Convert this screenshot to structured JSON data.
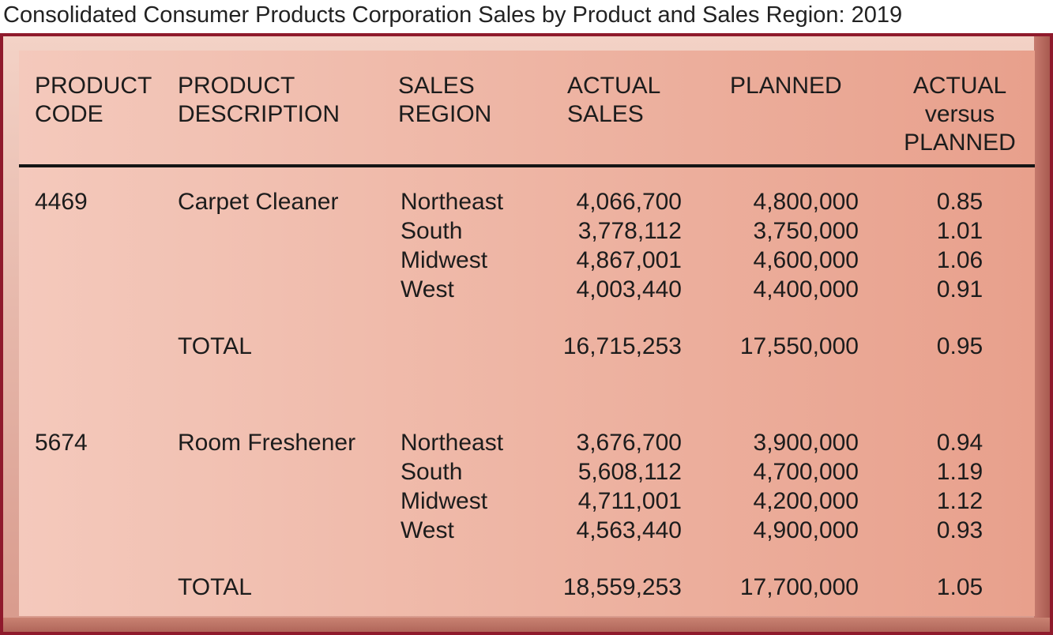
{
  "title": "Consolidated Consumer Products Corporation Sales by Product and Sales Region: 2019",
  "headers": {
    "code": [
      "PRODUCT",
      "CODE"
    ],
    "description": [
      "PRODUCT",
      "DESCRIPTION"
    ],
    "region": [
      "SALES",
      "REGION"
    ],
    "actual": [
      "ACTUAL",
      "SALES"
    ],
    "planned": [
      "PLANNED"
    ],
    "ratio": [
      "ACTUAL",
      "versus",
      "PLANNED"
    ]
  },
  "products": [
    {
      "code": "4469",
      "description": "Carpet Cleaner",
      "rows": [
        {
          "region": "Northeast",
          "actual": "4,066,700",
          "planned": "4,800,000",
          "ratio": "0.85"
        },
        {
          "region": "South",
          "actual": "3,778,112",
          "planned": "3,750,000",
          "ratio": "1.01"
        },
        {
          "region": "Midwest",
          "actual": "4,867,001",
          "planned": "4,600,000",
          "ratio": "1.06"
        },
        {
          "region": "West",
          "actual": "4,003,440",
          "planned": "4,400,000",
          "ratio": "0.91"
        }
      ],
      "total": {
        "label": "TOTAL",
        "actual": "16,715,253",
        "planned": "17,550,000",
        "ratio": "0.95"
      }
    },
    {
      "code": "5674",
      "description": "Room Freshener",
      "rows": [
        {
          "region": "Northeast",
          "actual": "3,676,700",
          "planned": "3,900,000",
          "ratio": "0.94"
        },
        {
          "region": "South",
          "actual": "5,608,112",
          "planned": "4,700,000",
          "ratio": "1.19"
        },
        {
          "region": "Midwest",
          "actual": "4,711,001",
          "planned": "4,200,000",
          "ratio": "1.12"
        },
        {
          "region": "West",
          "actual": "4,563,440",
          "planned": "4,900,000",
          "ratio": "0.93"
        }
      ],
      "total": {
        "label": "TOTAL",
        "actual": "18,559,253",
        "planned": "17,700,000",
        "ratio": "1.05"
      }
    }
  ]
}
